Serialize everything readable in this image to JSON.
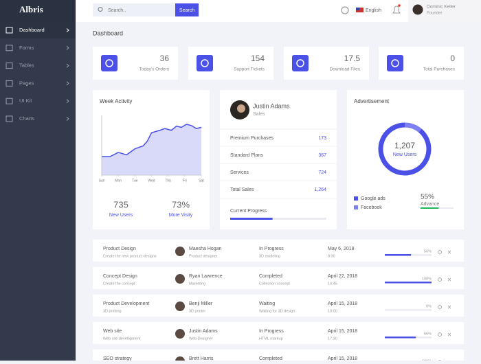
{
  "brand": "Albris",
  "sidebar": [
    "Dashboard",
    "Forms",
    "Tables",
    "Pages",
    "UI Kit",
    "Charts"
  ],
  "search": {
    "placeholder": "Search..",
    "button": "Search"
  },
  "language": "English",
  "user": {
    "name": "Dominic Keller",
    "role": "Founder"
  },
  "page_title": "Dashboard",
  "stats": [
    {
      "value": "36",
      "label": "Today's Orders"
    },
    {
      "value": "154",
      "label": "Support Tickets"
    },
    {
      "value": "17.5",
      "label": "Download Files"
    },
    {
      "value": "0",
      "label": "Total Purchases"
    }
  ],
  "week_activity": {
    "title": "Week Activity",
    "chart_data": {
      "type": "area",
      "color": "#4b50e6",
      "x": [
        0,
        0.5,
        1,
        1.5,
        2,
        2.5,
        2.75,
        3,
        3.5,
        3.8,
        4.2,
        4.5,
        4.8,
        5.1,
        5.4,
        5.7,
        6
      ],
      "values": [
        31,
        31,
        38,
        34,
        44,
        49,
        57,
        71,
        75,
        78,
        75,
        82,
        80,
        85,
        83,
        78,
        80
      ],
      "xlim": [
        0,
        6
      ],
      "ylim": [
        0,
        100
      ],
      "xticks": [
        {
          "value": 0,
          "label": "Sun"
        },
        {
          "value": 1,
          "label": "Mon"
        },
        {
          "value": 2,
          "label": "Tue"
        },
        {
          "value": 3,
          "label": "Wed"
        },
        {
          "value": 4,
          "label": "Thu"
        },
        {
          "value": 5,
          "label": "Fri"
        },
        {
          "value": 6,
          "label": "Sat"
        }
      ]
    },
    "footer": [
      {
        "value": "735",
        "label": "New Users"
      },
      {
        "value": "73%",
        "label": "More Visity"
      }
    ]
  },
  "profile": {
    "name": "Justin Adams",
    "role": "Sales",
    "rows": [
      {
        "label": "Premium Purchases",
        "value": "173"
      },
      {
        "label": "Standard Plans",
        "value": "367"
      },
      {
        "label": "Services",
        "value": "724"
      },
      {
        "label": "Total Sales",
        "value": "1,264"
      }
    ],
    "progress_label": "Current Progress",
    "progress": 44
  },
  "advertisement": {
    "title": "Advertisement",
    "center_value": "1,207",
    "center_label": "New Users",
    "chart_data": {
      "type": "donut",
      "series": [
        {
          "name": "Google ads",
          "color": "#4b50e6",
          "values": [
            89
          ]
        },
        {
          "name": "Facebook",
          "color": "#7d80f0",
          "values": [
            11
          ]
        }
      ]
    },
    "advance": {
      "value": 55,
      "value_label": "55%",
      "label": "Advance",
      "color": "#1db45c"
    }
  },
  "projects": [
    {
      "title": "Product Design",
      "subtitle": "Create the new product designs",
      "person": "Maesha Hogan",
      "person_role": "Product designer",
      "status": "In Progress",
      "status_note": "3D modeling",
      "date": "May 6, 2018",
      "time": "8:30",
      "progress": 56,
      "progress_label": "56%"
    },
    {
      "title": "Concept Design",
      "subtitle": "Create the concept",
      "person": "Ryan Lawrence",
      "person_role": "Marketing",
      "status": "Completed",
      "status_note": "Collection concept",
      "date": "April 22, 2018",
      "time": "14:45",
      "progress": 100,
      "progress_label": "100%"
    },
    {
      "title": "Product Development",
      "subtitle": "3D printing",
      "person": "Benji Miller",
      "person_role": "3D printer",
      "status": "Waiting",
      "status_note": "Waiting for 3D design",
      "date": "April 15, 2018",
      "time": "10:00",
      "progress": 0,
      "progress_label": "0%"
    },
    {
      "title": "Web site",
      "subtitle": "Web site development",
      "person": "Justin Adams",
      "person_role": "Web Designer",
      "status": "In Progress",
      "status_note": "HTML markup",
      "date": "April 15, 2018",
      "time": "17:30",
      "progress": 66,
      "progress_label": "66%"
    },
    {
      "title": "SEO strategy",
      "person": "Brett Harris",
      "status": "Completed",
      "date": "April 15, 2018",
      "progress": 100,
      "progress_label": "100%"
    }
  ]
}
